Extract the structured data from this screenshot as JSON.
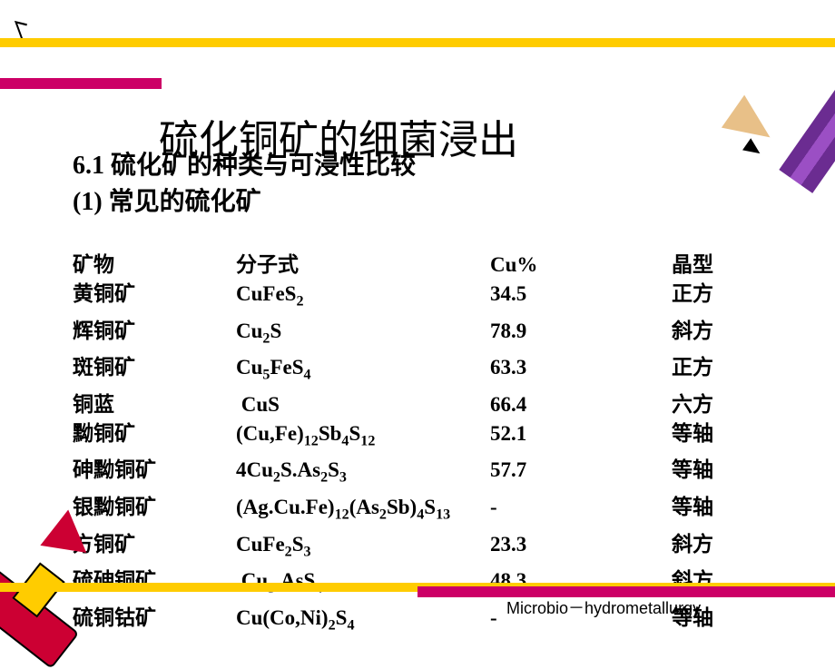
{
  "title": "硫化铜矿的细菌浸出",
  "subtitle": "6.1 硫化矿的种类与可浸性比较",
  "section": "(1) 常见的硫化矿",
  "headers": {
    "name": "矿物",
    "formula": "分子式",
    "cu": "Cu%",
    "crystal": "晶型"
  },
  "rows": [
    {
      "name": "黄铜矿",
      "formula": "CuFeS<sub>2</sub>",
      "cu": "34.5",
      "crystal": "正方"
    },
    {
      "name": "辉铜矿",
      "formula": "Cu<sub>2</sub>S",
      "cu": "78.9",
      "crystal": "斜方"
    },
    {
      "name": "斑铜矿",
      "formula": "Cu<sub>5</sub>FeS<sub>4</sub>",
      "cu": "63.3",
      "crystal": "正方"
    },
    {
      "name": "铜蓝",
      "formula": "&nbsp;CuS",
      "cu": "66.4",
      "crystal": "六方"
    },
    {
      "name": "黝铜矿",
      "formula": "(Cu,Fe)<sub>12</sub>Sb<sub>4</sub>S<sub>12</sub>",
      "cu": "52.1",
      "crystal": "等轴"
    },
    {
      "name": "砷黝铜矿",
      "formula": "4Cu<sub>2</sub>S.As<sub>2</sub>S<sub>3</sub>",
      "cu": "57.7",
      "crystal": "等轴"
    },
    {
      "name": "银黝铜矿",
      "formula": "(Ag.Cu.Fe)<sub>12</sub>(As<sub>2</sub>Sb)<sub>4</sub>S<sub>13</sub>",
      "cu": "-",
      "crystal": "等轴"
    },
    {
      "name": "方铜矿",
      "formula": "CuFe<sub>2</sub>S<sub>3</sub>",
      "cu": "23.3",
      "crystal": "斜方"
    },
    {
      "name": "硫砷铜矿",
      "formula": "&nbsp;Cu<sub>3</sub>.AsS<sub>4</sub>",
      "cu": "48.3",
      "crystal": "斜方"
    },
    {
      "name": "硫铜钴矿",
      "formula": "Cu(Co,Ni)<sub>2</sub>S<sub>4</sub>",
      "cu": "-",
      "crystal": "等轴"
    }
  ],
  "footer": "Microbio－hydrometallurgy",
  "colors": {
    "yellow": "#ffcc00",
    "magenta": "#cc0066",
    "crayon_red": "#cc0033",
    "pencil_purple": "#6b2c91",
    "background": "#ffffff",
    "text": "#000000"
  },
  "fonts": {
    "title_size": 44,
    "subtitle_size": 28,
    "body_size": 23,
    "footer_size": 18
  }
}
